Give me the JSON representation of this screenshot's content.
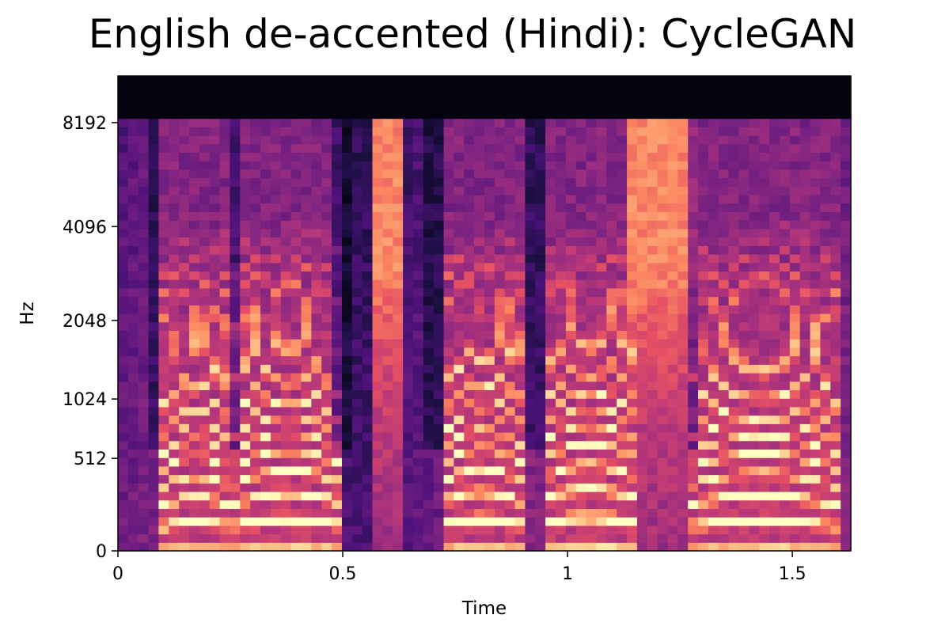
{
  "chart_data": {
    "type": "heatmap",
    "title": "English de-accented (Hindi): CycleGAN",
    "xlabel": "Time",
    "ylabel": "Hz",
    "x_ticks": [
      {
        "value": 0,
        "label": "0"
      },
      {
        "value": 0.5,
        "label": "0.5"
      },
      {
        "value": 1,
        "label": "1"
      },
      {
        "value": 1.5,
        "label": "1.5"
      }
    ],
    "y_ticks": [
      {
        "value": 0,
        "label": "0"
      },
      {
        "value": 512,
        "label": "512"
      },
      {
        "value": 1024,
        "label": "1024"
      },
      {
        "value": 2048,
        "label": "2048"
      },
      {
        "value": 4096,
        "label": "4096"
      },
      {
        "value": 8192,
        "label": "8192"
      }
    ],
    "xlim": [
      0,
      1.63
    ],
    "ylim": [
      0,
      11025
    ],
    "y_scale": "mel",
    "colormap": "magma",
    "grid": false,
    "time_frames": 72,
    "mel_bins": 56,
    "onset_times": [
      0.08,
      0.26,
      0.5,
      0.7,
      0.92,
      1.28
    ],
    "voiced_segments": [
      {
        "start": 0.09,
        "end": 0.26,
        "f0": 105
      },
      {
        "start": 0.26,
        "end": 0.5,
        "f0": 115
      },
      {
        "start": 0.72,
        "end": 0.9,
        "f0": 118
      },
      {
        "start": 0.94,
        "end": 1.16,
        "f0": 125
      },
      {
        "start": 1.26,
        "end": 1.6,
        "f0": 110
      }
    ],
    "fricative_segments": [
      {
        "start": 0.56,
        "end": 0.63
      },
      {
        "start": 1.14,
        "end": 1.28
      }
    ],
    "spectral_cutoff_hz": 8192
  }
}
